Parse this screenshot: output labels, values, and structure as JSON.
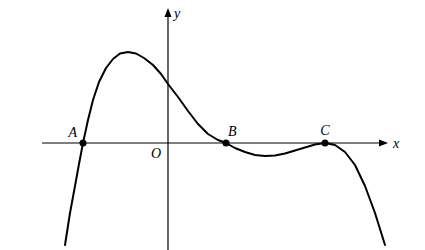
{
  "chart_data": {
    "type": "line",
    "xlabel": "x",
    "ylabel": "y",
    "xlim": [
      -2.52,
      4.4
    ],
    "ylim": [
      -2.14,
      2.7
    ],
    "tick_labels": false,
    "grid": false,
    "color": "#000000",
    "x": [
      -2.06,
      -1.96,
      -1.86,
      -1.78,
      -1.7,
      -1.6,
      -1.5,
      -1.38,
      -1.24,
      -1.1,
      -0.96,
      -0.8,
      -0.64,
      -0.48,
      -0.3,
      -0.14,
      0,
      0.2,
      0.4,
      0.6,
      0.8,
      1.0,
      1.16,
      1.34,
      1.54,
      1.74,
      1.94,
      2.14,
      2.34,
      2.54,
      2.74,
      2.94,
      3.14,
      3.34,
      3.54,
      3.74,
      3.94,
      4.14,
      4.34
    ],
    "values": [
      -2.04,
      -1.4,
      -0.86,
      -0.42,
      0,
      0.46,
      0.86,
      1.22,
      1.5,
      1.68,
      1.79,
      1.82,
      1.79,
      1.7,
      1.56,
      1.38,
      1.18,
      0.92,
      0.64,
      0.38,
      0.18,
      0.06,
      0,
      -0.1,
      -0.18,
      -0.24,
      -0.26,
      -0.25,
      -0.21,
      -0.15,
      -0.09,
      -0.03,
      0,
      -0.04,
      -0.18,
      -0.44,
      -0.86,
      -1.4,
      -2.04
    ],
    "annotations": [
      {
        "text": "A",
        "x": -1.7,
        "y": 0
      },
      {
        "text": "B",
        "x": 1.16,
        "y": 0
      },
      {
        "text": "C",
        "x": 3.14,
        "y": 0
      },
      {
        "text": "O",
        "x": 0,
        "y": 0
      }
    ]
  }
}
